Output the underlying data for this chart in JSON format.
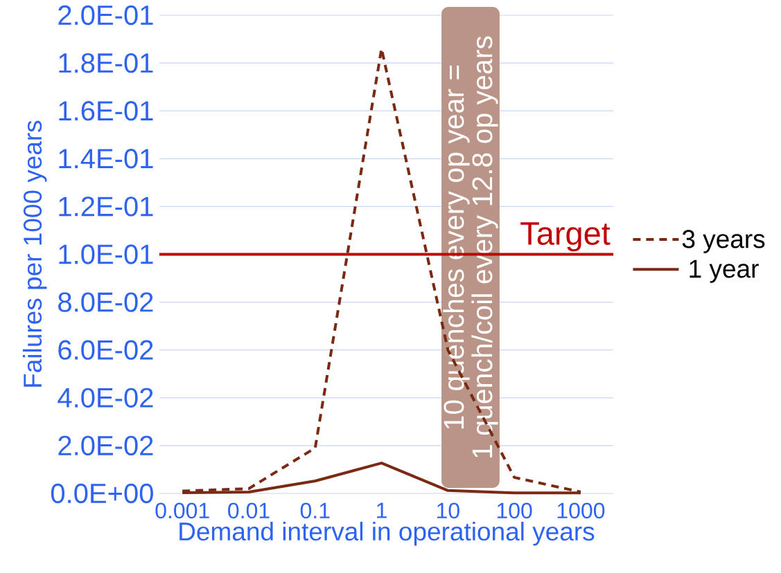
{
  "chart_data": {
    "type": "line",
    "xlabel": "Demand interval in operational years",
    "ylabel": "Failures per 1000 years",
    "x": [
      0.001,
      0.01,
      0.1,
      1,
      10,
      100,
      1000
    ],
    "log": "x",
    "xlim": [
      0.00045,
      3100
    ],
    "xticks": [
      0.001,
      0.01,
      0.1,
      1,
      10,
      100,
      1000
    ],
    "series": [
      {
        "name": "3 years",
        "color": "#7a2a12",
        "line_style": "dashed",
        "values": [
          0.001,
          0.002,
          0.019,
          0.186,
          0.06,
          0.0067,
          0.0006
        ]
      },
      {
        "name": "1 year",
        "color": "#7a2a12",
        "line_style": "solid",
        "values": [
          0.0003,
          0.0006,
          0.0052,
          0.0127,
          0.0012,
          0.0002,
          0.0002
        ]
      }
    ],
    "ylim": [
      0,
      0.2
    ],
    "yticks": [
      {
        "value": 0,
        "label": "0.0E+00"
      },
      {
        "value": 0.02,
        "label": "2.0E-02"
      },
      {
        "value": 0.04,
        "label": "4.0E-02"
      },
      {
        "value": 0.06,
        "label": "6.0E-02"
      },
      {
        "value": 0.08,
        "label": "8.0E-02"
      },
      {
        "value": 0.1,
        "label": "1.0E-01"
      },
      {
        "value": 0.12,
        "label": "1.2E-01"
      },
      {
        "value": 0.14,
        "label": "1.4E-01"
      },
      {
        "value": 0.16,
        "label": "1.6E-01"
      },
      {
        "value": 0.18,
        "label": "1.8E-01"
      },
      {
        "value": 0.2,
        "label": "2.0E-01"
      }
    ],
    "ref_lines": [
      {
        "axis": "y",
        "value": 0.1,
        "label": "Target",
        "color": "#c00000"
      }
    ],
    "bands": [
      {
        "axis": "x",
        "from": 8,
        "to": 60,
        "label": null,
        "color": "#b99487"
      }
    ],
    "annotations": [
      "10 quenches every op year =",
      "1 quench/coil every 12.8 op years"
    ],
    "grid": "y",
    "legend": "right"
  }
}
